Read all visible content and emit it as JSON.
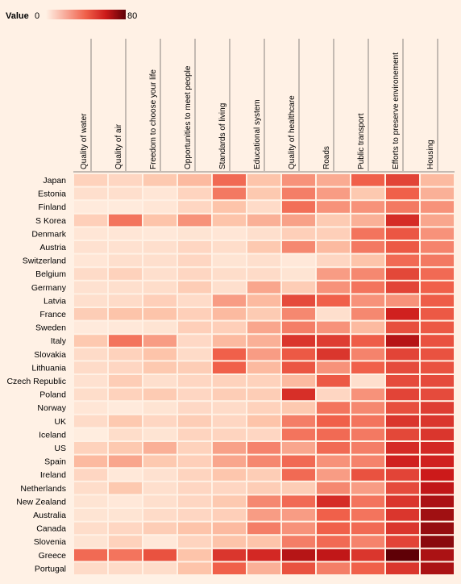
{
  "chart_data": {
    "type": "heatmap",
    "legend": {
      "title": "Value",
      "min": 0,
      "max": 80,
      "color_low": "#fff1e5",
      "color_high": "#5f0006"
    },
    "columns": [
      "Quality of water",
      "Quality of air",
      "Freedom to choose your life",
      "Opportunities to meet people",
      "Standards of living",
      "Educational system",
      "Quality of healthcare",
      "Roads",
      "Public transport",
      "Efforts to preserve environement",
      "Housing"
    ],
    "rows": [
      "Japan",
      "Estonia",
      "Finland",
      "S Korea",
      "Denmark",
      "Austria",
      "Switzerland",
      "Belgium",
      "Germany",
      "Latvia",
      "France",
      "Sweden",
      "Italy",
      "Slovakia",
      "Lithuania",
      "Czech Republic",
      "Poland",
      "Norway",
      "UK",
      "Iceland",
      "US",
      "Spain",
      "Ireland",
      "Netherlands",
      "New Zealand",
      "Australia",
      "Canada",
      "Slovenia",
      "Greece",
      "Portugal"
    ],
    "values": [
      [
        14,
        12,
        18,
        22,
        38,
        20,
        30,
        25,
        40,
        48,
        22
      ],
      [
        8,
        8,
        5,
        13,
        35,
        18,
        34,
        28,
        18,
        40,
        24
      ],
      [
        3,
        3,
        5,
        12,
        20,
        10,
        37,
        30,
        30,
        35,
        30
      ],
      [
        15,
        36,
        20,
        30,
        20,
        24,
        27,
        17,
        24,
        55,
        26
      ],
      [
        5,
        5,
        4,
        6,
        5,
        8,
        15,
        15,
        36,
        43,
        30
      ],
      [
        7,
        7,
        8,
        12,
        9,
        18,
        32,
        22,
        35,
        42,
        33
      ],
      [
        5,
        8,
        8,
        12,
        6,
        8,
        4,
        12,
        20,
        38,
        35
      ],
      [
        10,
        14,
        8,
        12,
        9,
        10,
        6,
        28,
        32,
        47,
        38
      ],
      [
        7,
        8,
        9,
        16,
        8,
        26,
        16,
        30,
        36,
        48,
        40
      ],
      [
        8,
        10,
        15,
        10,
        28,
        22,
        46,
        40,
        30,
        30,
        41
      ],
      [
        16,
        20,
        20,
        15,
        22,
        17,
        32,
        8,
        32,
        58,
        42
      ],
      [
        3,
        4,
        6,
        15,
        15,
        26,
        34,
        30,
        22,
        45,
        42
      ],
      [
        18,
        36,
        28,
        11,
        22,
        24,
        52,
        50,
        41,
        64,
        44
      ],
      [
        10,
        14,
        20,
        10,
        40,
        28,
        42,
        52,
        33,
        48,
        44
      ],
      [
        10,
        12,
        18,
        16,
        40,
        22,
        43,
        30,
        40,
        46,
        44
      ],
      [
        7,
        16,
        8,
        12,
        14,
        14,
        22,
        42,
        8,
        46,
        46
      ],
      [
        9,
        14,
        17,
        12,
        16,
        16,
        54,
        12,
        30,
        48,
        46
      ],
      [
        5,
        3,
        6,
        11,
        10,
        14,
        18,
        36,
        32,
        45,
        50
      ],
      [
        10,
        18,
        12,
        16,
        12,
        20,
        34,
        40,
        36,
        52,
        52
      ],
      [
        2,
        9,
        6,
        13,
        13,
        12,
        36,
        38,
        35,
        47,
        52
      ],
      [
        14,
        18,
        24,
        14,
        27,
        33,
        26,
        38,
        34,
        55,
        56
      ],
      [
        22,
        26,
        18,
        15,
        26,
        32,
        38,
        30,
        33,
        58,
        58
      ],
      [
        12,
        4,
        7,
        13,
        19,
        16,
        38,
        28,
        44,
        48,
        60
      ],
      [
        9,
        18,
        8,
        12,
        12,
        16,
        16,
        32,
        28,
        46,
        62
      ],
      [
        6,
        4,
        8,
        12,
        18,
        32,
        38,
        55,
        36,
        52,
        66
      ],
      [
        6,
        6,
        10,
        12,
        15,
        28,
        28,
        40,
        36,
        52,
        68
      ],
      [
        9,
        12,
        16,
        20,
        22,
        34,
        30,
        40,
        38,
        52,
        70
      ],
      [
        6,
        14,
        4,
        13,
        20,
        20,
        34,
        38,
        33,
        48,
        72
      ],
      [
        38,
        36,
        44,
        20,
        52,
        56,
        64,
        62,
        52,
        80,
        66
      ],
      [
        10,
        10,
        9,
        20,
        40,
        24,
        44,
        34,
        40,
        52,
        66
      ]
    ]
  }
}
